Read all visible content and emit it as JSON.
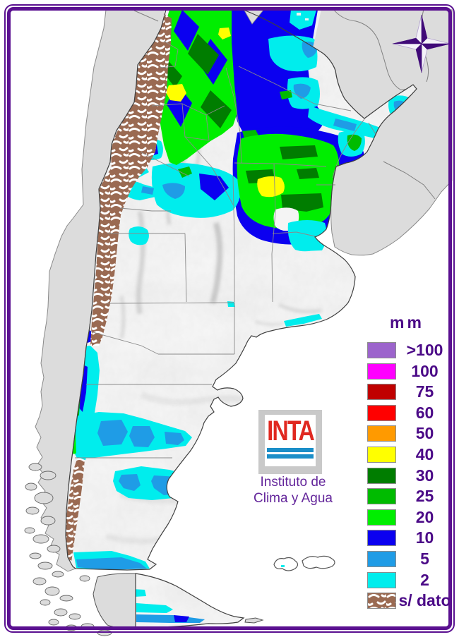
{
  "map": {
    "name": "argentina-precipitation-map",
    "description": "Precipitation map of Argentina with data legend in mm"
  },
  "legend": {
    "title": "mm",
    "items": [
      {
        "label": ">100",
        "color": "#9c64cc"
      },
      {
        "label": "100",
        "color": "#ff00ff"
      },
      {
        "label": "75",
        "color": "#c00000"
      },
      {
        "label": "60",
        "color": "#ff0000"
      },
      {
        "label": "50",
        "color": "#ff9a00"
      },
      {
        "label": "40",
        "color": "#ffff00"
      },
      {
        "label": "30",
        "color": "#007d00"
      },
      {
        "label": "25",
        "color": "#00bb00"
      },
      {
        "label": "20",
        "color": "#00ee00"
      },
      {
        "label": "10",
        "color": "#0b00f0"
      },
      {
        "label": "5",
        "color": "#1f9ce6"
      },
      {
        "label": "2",
        "color": "#00eded"
      },
      {
        "label": "s/ dato",
        "color": "#9a6a52",
        "pattern": "squiggle"
      }
    ]
  },
  "logo": {
    "acronym": "INTA",
    "institute_line1": "Instituto de",
    "institute_line2": "Clima y Agua"
  },
  "colors": {
    "frame": "#5a1090",
    "legend_text": "#4b0a87",
    "neighbor_land": "#dcdcdc",
    "compass_dark": "#400a78"
  }
}
